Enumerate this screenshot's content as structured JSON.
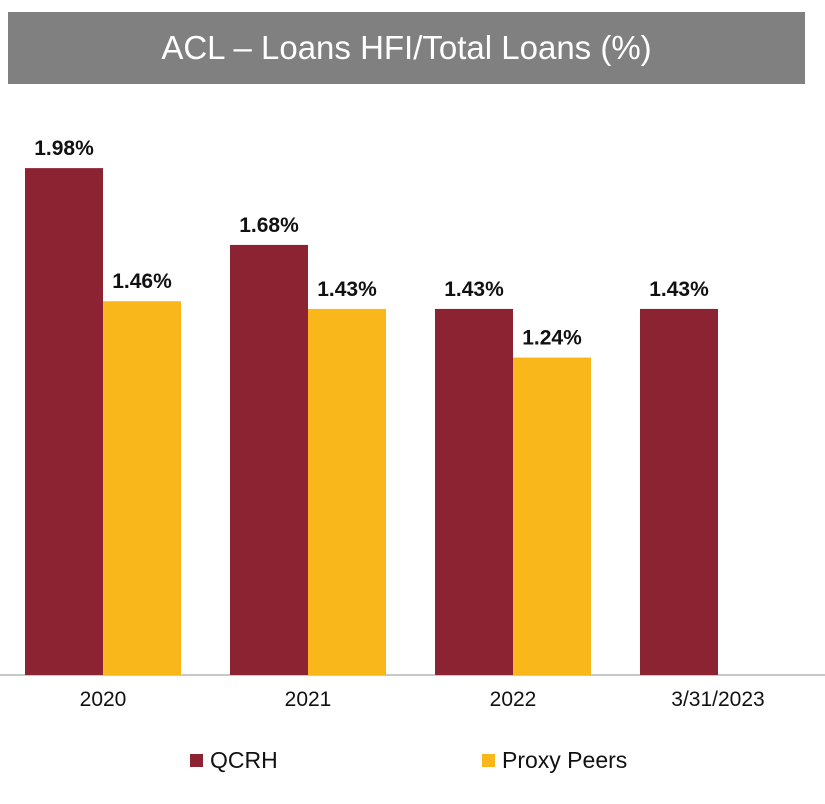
{
  "chart_data": {
    "type": "bar",
    "title": "ACL – Loans HFI/Total Loans (%)",
    "categories": [
      "2020",
      "2021",
      "2022",
      "3/31/2023"
    ],
    "series": [
      {
        "name": "QCRH",
        "color": "#8B2332",
        "values": [
          1.98,
          1.68,
          1.43,
          1.43
        ],
        "labels": [
          "1.98%",
          "1.68%",
          "1.43%",
          "1.43%"
        ]
      },
      {
        "name": "Proxy Peers",
        "color": "#F9B71B",
        "values": [
          1.46,
          1.43,
          1.24,
          null
        ],
        "labels": [
          "1.46%",
          "1.43%",
          "1.24%",
          ""
        ]
      }
    ],
    "ylim": [
      0,
      2.0
    ],
    "grid": false,
    "legend_position": "bottom"
  }
}
